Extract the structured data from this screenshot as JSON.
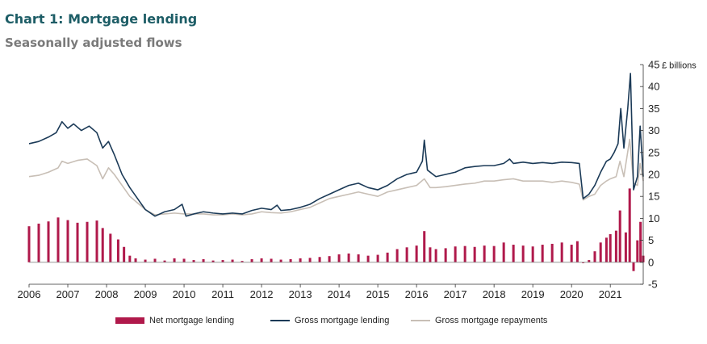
{
  "header": {
    "title": "Chart 1: Mortgage lending",
    "subtitle": "Seasonally adjusted flows"
  },
  "colors": {
    "net": "#b0194b",
    "gross": "#1b3a57",
    "repay": "#c8bfb6",
    "title": "#1d5d66"
  },
  "chart_data": {
    "type": "bar+line",
    "title": "Chart 1: Mortgage lending",
    "subtitle": "Seasonally adjusted flows",
    "y_unit_label": "£ billions",
    "ylim": [
      -5,
      45
    ],
    "y_ticks": [
      "-5",
      "0",
      "5",
      "10",
      "15",
      "20",
      "25",
      "30",
      "35",
      "40",
      "45"
    ],
    "x_ticks": [
      "2006",
      "2007",
      "2008",
      "2009",
      "2010",
      "2011",
      "2012",
      "2013",
      "2014",
      "2015",
      "2016",
      "2017",
      "2018",
      "2019",
      "2020",
      "2021"
    ],
    "x_range": [
      2006.0,
      2021.85
    ],
    "legend_position": "bottom",
    "grid": false,
    "series": [
      {
        "name": "Net mortgage lending",
        "kind": "bar",
        "points": [
          [
            2006.0,
            8.2
          ],
          [
            2006.25,
            8.8
          ],
          [
            2006.5,
            9.3
          ],
          [
            2006.75,
            10.2
          ],
          [
            2007.0,
            9.6
          ],
          [
            2007.25,
            9.0
          ],
          [
            2007.5,
            9.2
          ],
          [
            2007.75,
            9.5
          ],
          [
            2007.9,
            7.8
          ],
          [
            2008.1,
            6.5
          ],
          [
            2008.3,
            5.2
          ],
          [
            2008.45,
            3.5
          ],
          [
            2008.6,
            1.5
          ],
          [
            2008.75,
            0.9
          ],
          [
            2009.0,
            0.6
          ],
          [
            2009.25,
            0.8
          ],
          [
            2009.5,
            0.4
          ],
          [
            2009.75,
            0.9
          ],
          [
            2010.0,
            0.8
          ],
          [
            2010.25,
            0.5
          ],
          [
            2010.5,
            0.7
          ],
          [
            2010.75,
            0.4
          ],
          [
            2011.0,
            0.5
          ],
          [
            2011.25,
            0.6
          ],
          [
            2011.5,
            0.3
          ],
          [
            2011.75,
            0.7
          ],
          [
            2012.0,
            0.9
          ],
          [
            2012.25,
            0.8
          ],
          [
            2012.5,
            0.6
          ],
          [
            2012.75,
            0.7
          ],
          [
            2013.0,
            0.9
          ],
          [
            2013.25,
            1.0
          ],
          [
            2013.5,
            1.2
          ],
          [
            2013.75,
            1.4
          ],
          [
            2014.0,
            1.8
          ],
          [
            2014.25,
            2.0
          ],
          [
            2014.5,
            1.8
          ],
          [
            2014.75,
            1.5
          ],
          [
            2015.0,
            1.7
          ],
          [
            2015.25,
            2.2
          ],
          [
            2015.5,
            3.0
          ],
          [
            2015.75,
            3.4
          ],
          [
            2016.0,
            3.8
          ],
          [
            2016.2,
            7.1
          ],
          [
            2016.35,
            3.4
          ],
          [
            2016.5,
            3.0
          ],
          [
            2016.75,
            3.2
          ],
          [
            2017.0,
            3.6
          ],
          [
            2017.25,
            3.7
          ],
          [
            2017.5,
            3.5
          ],
          [
            2017.75,
            3.8
          ],
          [
            2018.0,
            3.7
          ],
          [
            2018.25,
            4.5
          ],
          [
            2018.5,
            4.0
          ],
          [
            2018.75,
            3.8
          ],
          [
            2019.0,
            3.6
          ],
          [
            2019.25,
            4.0
          ],
          [
            2019.5,
            4.2
          ],
          [
            2019.75,
            4.5
          ],
          [
            2020.0,
            4.0
          ],
          [
            2020.15,
            4.8
          ],
          [
            2020.3,
            -0.2
          ],
          [
            2020.45,
            0.5
          ],
          [
            2020.6,
            2.5
          ],
          [
            2020.75,
            4.5
          ],
          [
            2020.9,
            5.6
          ],
          [
            2021.0,
            6.4
          ],
          [
            2021.15,
            7.2
          ],
          [
            2021.25,
            11.8
          ],
          [
            2021.4,
            6.8
          ],
          [
            2021.5,
            16.8
          ],
          [
            2021.6,
            -2.0
          ],
          [
            2021.7,
            5.0
          ],
          [
            2021.78,
            9.2
          ],
          [
            2021.85,
            1.5
          ]
        ]
      },
      {
        "name": "Gross mortgage lending",
        "kind": "line",
        "points": [
          [
            2006.0,
            27.0
          ],
          [
            2006.25,
            27.5
          ],
          [
            2006.5,
            28.5
          ],
          [
            2006.7,
            29.5
          ],
          [
            2006.85,
            32.0
          ],
          [
            2007.0,
            30.5
          ],
          [
            2007.15,
            31.5
          ],
          [
            2007.35,
            30.0
          ],
          [
            2007.55,
            31.0
          ],
          [
            2007.75,
            29.5
          ],
          [
            2007.9,
            26.0
          ],
          [
            2008.05,
            27.5
          ],
          [
            2008.2,
            24.5
          ],
          [
            2008.4,
            20.0
          ],
          [
            2008.6,
            17.0
          ],
          [
            2008.8,
            14.5
          ],
          [
            2009.0,
            12.0
          ],
          [
            2009.25,
            10.5
          ],
          [
            2009.5,
            11.5
          ],
          [
            2009.75,
            12.0
          ],
          [
            2009.95,
            13.2
          ],
          [
            2010.05,
            10.5
          ],
          [
            2010.25,
            11.0
          ],
          [
            2010.5,
            11.5
          ],
          [
            2010.75,
            11.2
          ],
          [
            2011.0,
            11.0
          ],
          [
            2011.25,
            11.2
          ],
          [
            2011.5,
            11.0
          ],
          [
            2011.75,
            11.8
          ],
          [
            2012.0,
            12.3
          ],
          [
            2012.25,
            12.0
          ],
          [
            2012.4,
            13.0
          ],
          [
            2012.5,
            11.8
          ],
          [
            2012.75,
            12.0
          ],
          [
            2013.0,
            12.5
          ],
          [
            2013.25,
            13.2
          ],
          [
            2013.5,
            14.5
          ],
          [
            2013.75,
            15.5
          ],
          [
            2014.0,
            16.5
          ],
          [
            2014.25,
            17.5
          ],
          [
            2014.5,
            18.0
          ],
          [
            2014.75,
            17.0
          ],
          [
            2015.0,
            16.5
          ],
          [
            2015.25,
            17.5
          ],
          [
            2015.5,
            19.0
          ],
          [
            2015.75,
            20.0
          ],
          [
            2016.0,
            20.5
          ],
          [
            2016.15,
            23.0
          ],
          [
            2016.2,
            27.8
          ],
          [
            2016.28,
            21.0
          ],
          [
            2016.5,
            19.5
          ],
          [
            2016.75,
            20.0
          ],
          [
            2017.0,
            20.5
          ],
          [
            2017.25,
            21.5
          ],
          [
            2017.5,
            21.8
          ],
          [
            2017.75,
            22.0
          ],
          [
            2018.0,
            22.0
          ],
          [
            2018.25,
            22.5
          ],
          [
            2018.4,
            23.5
          ],
          [
            2018.5,
            22.5
          ],
          [
            2018.75,
            22.8
          ],
          [
            2019.0,
            22.5
          ],
          [
            2019.25,
            22.7
          ],
          [
            2019.5,
            22.5
          ],
          [
            2019.75,
            22.8
          ],
          [
            2020.0,
            22.7
          ],
          [
            2020.2,
            22.5
          ],
          [
            2020.3,
            14.5
          ],
          [
            2020.45,
            15.5
          ],
          [
            2020.6,
            17.5
          ],
          [
            2020.75,
            20.5
          ],
          [
            2020.9,
            23.0
          ],
          [
            2021.0,
            23.5
          ],
          [
            2021.1,
            25.0
          ],
          [
            2021.2,
            27.0
          ],
          [
            2021.27,
            35.0
          ],
          [
            2021.35,
            26.0
          ],
          [
            2021.45,
            35.0
          ],
          [
            2021.52,
            43.0
          ],
          [
            2021.6,
            16.5
          ],
          [
            2021.7,
            19.5
          ],
          [
            2021.77,
            31.0
          ],
          [
            2021.85,
            19.5
          ]
        ]
      },
      {
        "name": "Gross mortgage repayments",
        "kind": "line",
        "points": [
          [
            2006.0,
            19.5
          ],
          [
            2006.25,
            19.8
          ],
          [
            2006.5,
            20.5
          ],
          [
            2006.75,
            21.5
          ],
          [
            2006.85,
            23.0
          ],
          [
            2007.0,
            22.5
          ],
          [
            2007.25,
            23.2
          ],
          [
            2007.5,
            23.5
          ],
          [
            2007.75,
            22.0
          ],
          [
            2007.9,
            19.0
          ],
          [
            2008.05,
            21.5
          ],
          [
            2008.2,
            20.0
          ],
          [
            2008.4,
            17.5
          ],
          [
            2008.6,
            15.0
          ],
          [
            2008.8,
            13.5
          ],
          [
            2009.0,
            12.0
          ],
          [
            2009.25,
            10.8
          ],
          [
            2009.5,
            11.0
          ],
          [
            2009.75,
            11.2
          ],
          [
            2010.0,
            11.0
          ],
          [
            2010.25,
            11.0
          ],
          [
            2010.5,
            11.0
          ],
          [
            2010.75,
            10.8
          ],
          [
            2011.0,
            10.8
          ],
          [
            2011.25,
            11.0
          ],
          [
            2011.5,
            10.8
          ],
          [
            2011.75,
            11.0
          ],
          [
            2012.0,
            11.5
          ],
          [
            2012.25,
            11.3
          ],
          [
            2012.5,
            11.2
          ],
          [
            2012.75,
            11.5
          ],
          [
            2013.0,
            12.0
          ],
          [
            2013.25,
            12.5
          ],
          [
            2013.5,
            13.5
          ],
          [
            2013.75,
            14.5
          ],
          [
            2014.0,
            15.0
          ],
          [
            2014.25,
            15.5
          ],
          [
            2014.5,
            16.0
          ],
          [
            2014.75,
            15.5
          ],
          [
            2015.0,
            15.0
          ],
          [
            2015.25,
            16.0
          ],
          [
            2015.5,
            16.5
          ],
          [
            2015.75,
            17.0
          ],
          [
            2016.0,
            17.5
          ],
          [
            2016.2,
            19.0
          ],
          [
            2016.35,
            17.0
          ],
          [
            2016.5,
            17.0
          ],
          [
            2016.75,
            17.2
          ],
          [
            2017.0,
            17.5
          ],
          [
            2017.25,
            17.8
          ],
          [
            2017.5,
            18.0
          ],
          [
            2017.75,
            18.5
          ],
          [
            2018.0,
            18.5
          ],
          [
            2018.25,
            18.8
          ],
          [
            2018.5,
            19.0
          ],
          [
            2018.75,
            18.5
          ],
          [
            2019.0,
            18.5
          ],
          [
            2019.25,
            18.5
          ],
          [
            2019.5,
            18.2
          ],
          [
            2019.75,
            18.5
          ],
          [
            2020.0,
            18.2
          ],
          [
            2020.2,
            17.8
          ],
          [
            2020.3,
            14.2
          ],
          [
            2020.45,
            15.0
          ],
          [
            2020.6,
            15.5
          ],
          [
            2020.75,
            17.5
          ],
          [
            2020.9,
            18.5
          ],
          [
            2021.0,
            19.0
          ],
          [
            2021.15,
            19.5
          ],
          [
            2021.25,
            23.0
          ],
          [
            2021.35,
            19.5
          ],
          [
            2021.5,
            28.0
          ],
          [
            2021.6,
            18.0
          ],
          [
            2021.7,
            17.5
          ],
          [
            2021.77,
            22.5
          ],
          [
            2021.85,
            18.5
          ]
        ]
      }
    ]
  }
}
